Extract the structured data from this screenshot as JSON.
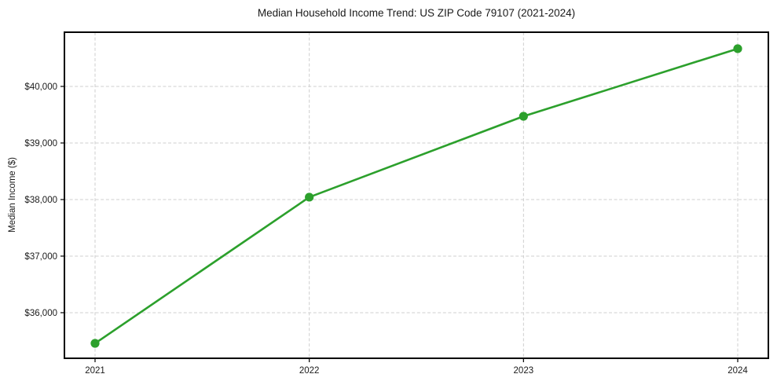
{
  "chart_data": {
    "type": "line",
    "title": "Median Household Income Trend: US ZIP Code 79107 (2021-2024)",
    "xlabel": "",
    "ylabel": "Median Income ($)",
    "x": [
      2021,
      2022,
      2023,
      2024
    ],
    "x_tick_labels": [
      "2021",
      "2022",
      "2023",
      "2024"
    ],
    "series": [
      {
        "name": "Median Household Income",
        "values": [
          35458,
          38042,
          39472,
          40667
        ]
      }
    ],
    "y_ticks": [
      36000,
      37000,
      38000,
      39000,
      40000
    ],
    "y_tick_labels": [
      "$36,000",
      "$37,000",
      "$38,000",
      "$39,000",
      "$40,000"
    ],
    "xlim": [
      2020.857,
      2024.143
    ],
    "ylim": [
      35194,
      40958
    ],
    "grid": "both, dashed",
    "legend": "none",
    "colors": {
      "line": "#2ca02c",
      "marker": "#2ca02c",
      "gridline": "#cfcfcf",
      "spine": "#000000",
      "text": "#1a1a1a",
      "background": "#ffffff"
    }
  }
}
